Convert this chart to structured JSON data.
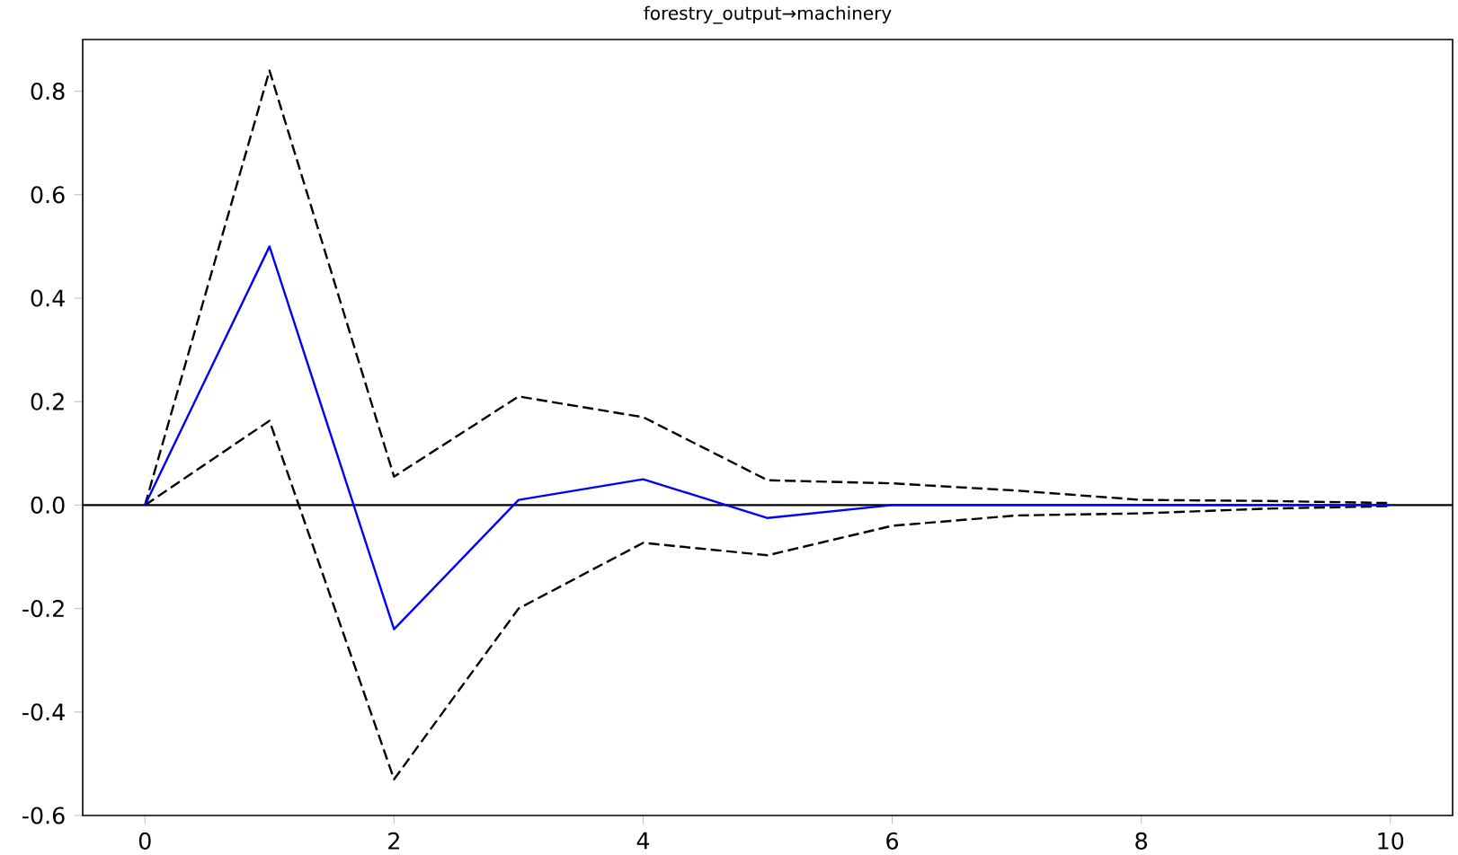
{
  "chart_data": {
    "type": "line",
    "title": "forestry_output→machinery",
    "x": [
      0,
      1,
      2,
      3,
      4,
      5,
      6,
      7,
      8,
      9,
      10
    ],
    "series": [
      {
        "color": "#0000ff",
        "line_style": "solid",
        "values": [
          0,
          0.5,
          -0.24,
          0.01,
          0.05,
          -0.025,
          0.0,
          0.0,
          0.0,
          0.0,
          0.0
        ]
      },
      {
        "color": "#000000",
        "line_style": "dashed",
        "values": [
          0,
          0.84,
          0.055,
          0.21,
          0.17,
          0.048,
          0.042,
          0.028,
          0.01,
          0.008,
          0.004
        ]
      },
      {
        "color": "#000000",
        "line_style": "dashed",
        "values": [
          0,
          0.163,
          -0.53,
          -0.2,
          -0.073,
          -0.097,
          -0.04,
          -0.02,
          -0.016,
          -0.007,
          -0.002
        ]
      }
    ],
    "ref_lines": [
      {
        "axis": "y",
        "value": 0,
        "color": "#000000",
        "line_style": "solid"
      }
    ],
    "xlim": [
      -0.5,
      10.5
    ],
    "ylim": [
      -0.6,
      0.9
    ],
    "xticks": [
      0,
      2,
      4,
      6,
      8,
      10
    ],
    "yticks": [
      -0.6,
      -0.4,
      -0.2,
      {
        "value": 0,
        "label": "0.0"
      },
      0.2,
      0.4,
      0.6,
      0.8
    ],
    "grid": false
  }
}
